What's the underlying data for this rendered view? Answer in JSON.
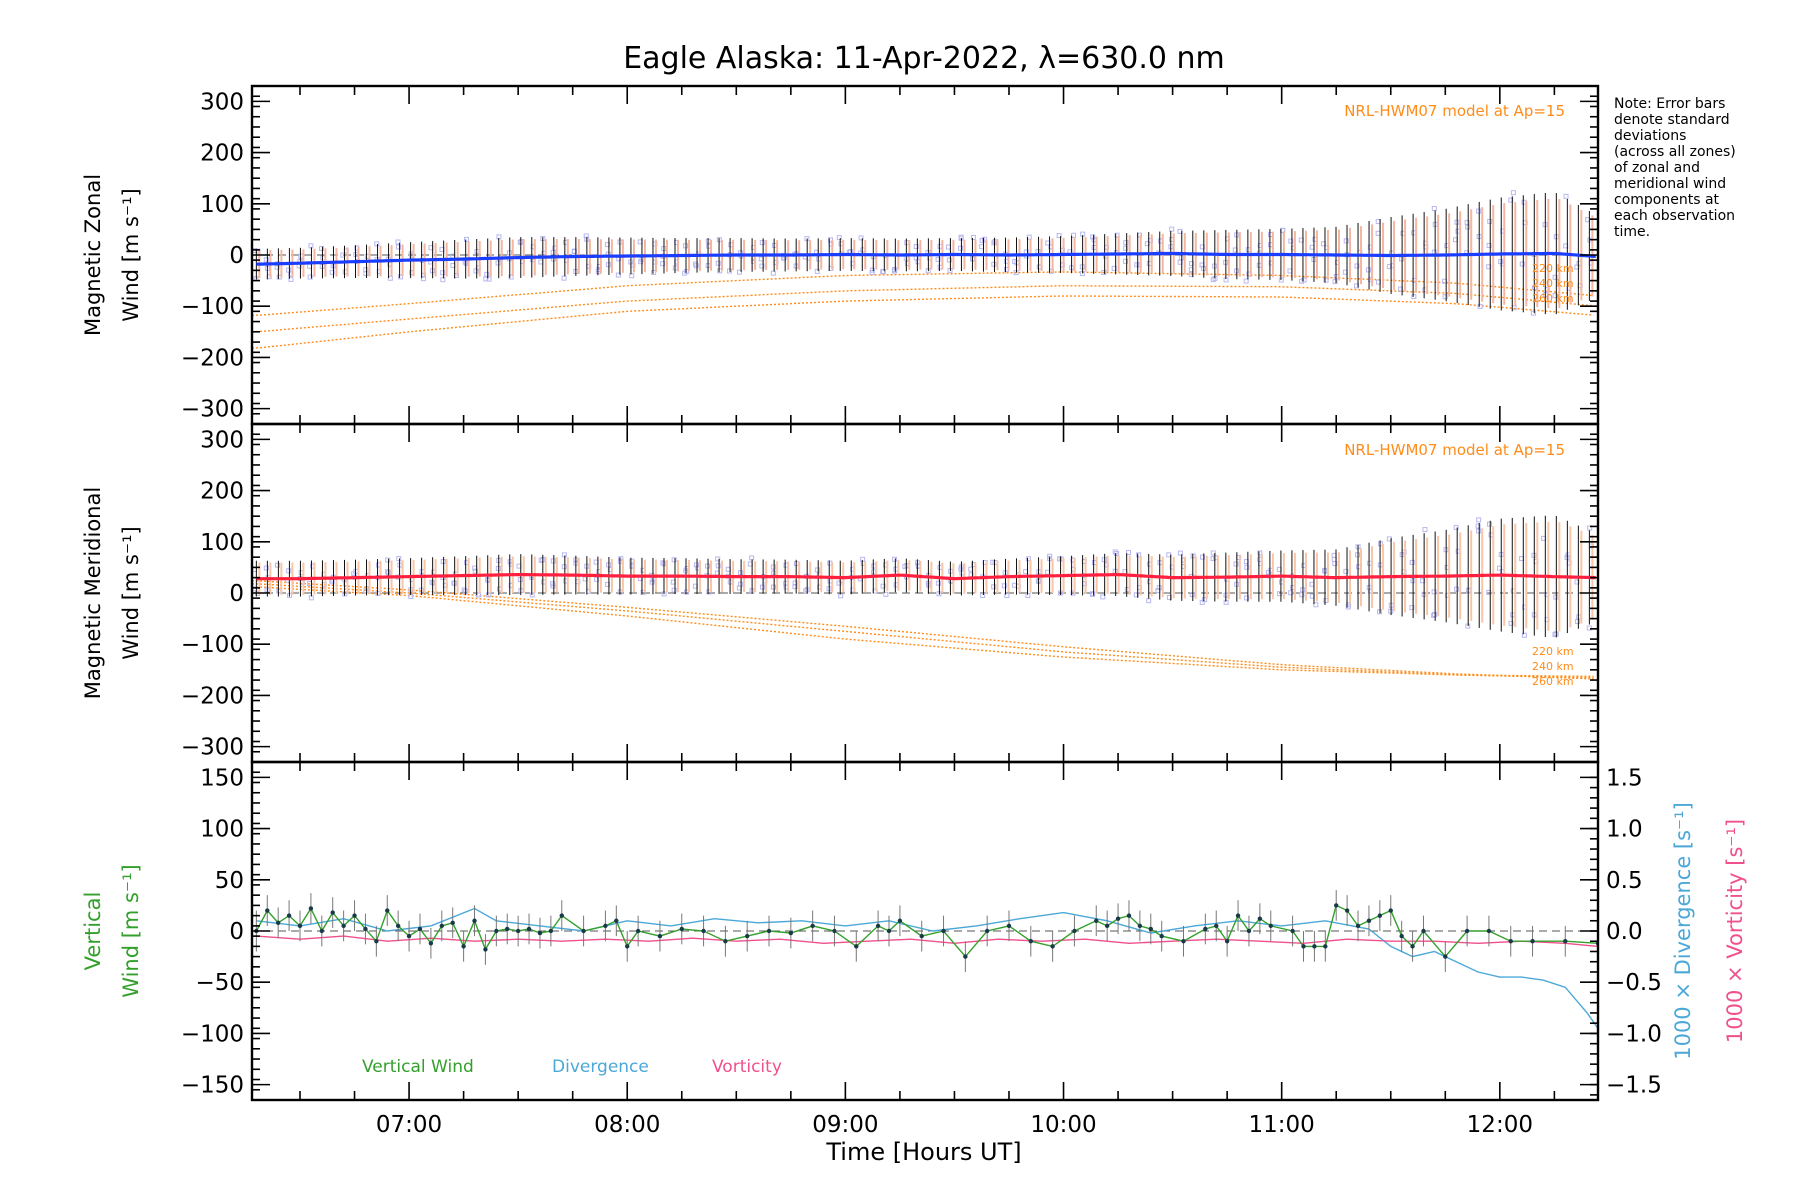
{
  "title": "Eagle Alaska: 11-Apr-2022, λ=630.0 nm",
  "note": [
    "Note: Error bars",
    "denote standard",
    "deviations",
    "(across all zones)",
    "of zonal and",
    "meridional wind",
    "components at",
    "each observation",
    "time."
  ],
  "xlabel": "Time [Hours UT]",
  "chart_data": [
    {
      "type": "line",
      "panel": "zonal",
      "ylabel_lines": [
        "Magnetic Zonal",
        "Wind [m s⁻¹]"
      ],
      "xlim": [
        6.28,
        12.45
      ],
      "ylim": [
        -330,
        330
      ],
      "x_ticks": [
        7,
        8,
        9,
        10,
        11,
        12
      ],
      "x_tick_labels": [
        "07:00",
        "08:00",
        "09:00",
        "10:00",
        "11:00",
        "12:00"
      ],
      "y_ticks": [
        -300,
        -200,
        -100,
        0,
        100,
        200,
        300
      ],
      "y_tick_labels": [
        "−300",
        "−200",
        "−100",
        "0",
        "100",
        "200",
        "300"
      ],
      "model_label": "NRL-HWM07 model at Ap=15",
      "series": [
        {
          "x": [
            6.3,
            6.5,
            6.75,
            7.0,
            7.25,
            7.5,
            7.75,
            8.0,
            8.25,
            8.5,
            8.75,
            9.0,
            9.25,
            9.5,
            9.75,
            10.0,
            10.25,
            10.5,
            10.75,
            11.0,
            11.25,
            11.5,
            11.75,
            12.0,
            12.25,
            12.45
          ],
          "y": [
            -18,
            -16,
            -13,
            -10,
            -8,
            -5,
            -3,
            -2,
            -1,
            0,
            0,
            1,
            0,
            1,
            0,
            1,
            2,
            3,
            1,
            1,
            0,
            -1,
            0,
            2,
            3,
            -3
          ],
          "err": [
            30,
            30,
            32,
            35,
            38,
            40,
            38,
            36,
            34,
            33,
            32,
            32,
            32,
            32,
            34,
            36,
            40,
            44,
            48,
            50,
            55,
            75,
            90,
            110,
            120,
            80
          ],
          "color": "#1a3dff"
        }
      ],
      "model_curves": [
        {
          "label": "220 km",
          "x": [
            6.3,
            7.0,
            8.0,
            9.0,
            10.0,
            11.0,
            11.8,
            12.45
          ],
          "y": [
            -118,
            -95,
            -60,
            -40,
            -33,
            -40,
            -55,
            -80
          ]
        },
        {
          "label": "240 km",
          "x": [
            6.3,
            7.0,
            8.0,
            9.0,
            10.0,
            11.0,
            11.8,
            12.45
          ],
          "y": [
            -150,
            -125,
            -90,
            -70,
            -60,
            -62,
            -75,
            -100
          ]
        },
        {
          "label": "260 km",
          "x": [
            6.3,
            7.0,
            8.0,
            9.0,
            10.0,
            11.0,
            11.8,
            12.45
          ],
          "y": [
            -182,
            -150,
            -110,
            -90,
            -80,
            -82,
            -95,
            -118
          ]
        }
      ]
    },
    {
      "type": "line",
      "panel": "meridional",
      "ylabel_lines": [
        "Magnetic Meridional",
        "Wind [m s⁻¹]"
      ],
      "xlim": [
        6.28,
        12.45
      ],
      "ylim": [
        -330,
        330
      ],
      "x_ticks": [
        7,
        8,
        9,
        10,
        11,
        12
      ],
      "y_ticks": [
        -300,
        -200,
        -100,
        0,
        100,
        200,
        300
      ],
      "y_tick_labels": [
        "−300",
        "−200",
        "−100",
        "0",
        "100",
        "200",
        "300"
      ],
      "model_label": "NRL-HWM07 model at Ap=15",
      "series": [
        {
          "x": [
            6.3,
            6.5,
            6.75,
            7.0,
            7.25,
            7.5,
            7.75,
            8.0,
            8.25,
            8.5,
            8.75,
            9.0,
            9.25,
            9.5,
            9.75,
            10.0,
            10.25,
            10.5,
            10.75,
            11.0,
            11.25,
            11.5,
            11.75,
            12.0,
            12.25,
            12.45
          ],
          "y": [
            28,
            28,
            30,
            32,
            34,
            36,
            35,
            33,
            33,
            32,
            32,
            30,
            35,
            28,
            32,
            34,
            36,
            30,
            31,
            33,
            30,
            32,
            33,
            35,
            32,
            30
          ],
          "err": [
            35,
            35,
            35,
            36,
            38,
            40,
            38,
            36,
            35,
            34,
            33,
            33,
            33,
            33,
            35,
            38,
            42,
            45,
            48,
            50,
            55,
            75,
            90,
            110,
            120,
            85
          ],
          "color": "#ff2040"
        }
      ],
      "model_curves": [
        {
          "label": "220 km",
          "x": [
            6.3,
            7.0,
            8.0,
            9.0,
            10.0,
            11.0,
            11.8,
            12.45
          ],
          "y": [
            12,
            -5,
            -45,
            -90,
            -125,
            -150,
            -160,
            -163
          ]
        },
        {
          "label": "240 km",
          "x": [
            6.3,
            7.0,
            8.0,
            9.0,
            10.0,
            11.0,
            11.8,
            12.45
          ],
          "y": [
            18,
            0,
            -35,
            -75,
            -115,
            -145,
            -160,
            -166
          ]
        },
        {
          "label": "260 km",
          "x": [
            6.3,
            7.0,
            8.0,
            9.0,
            10.0,
            11.0,
            11.8,
            12.45
          ],
          "y": [
            24,
            6,
            -28,
            -65,
            -105,
            -140,
            -158,
            -168
          ]
        }
      ]
    },
    {
      "type": "line",
      "panel": "vertical",
      "ylabel_lines": [
        "Vertical",
        "Wind [m s⁻¹]"
      ],
      "ylabel2": "1000 × Divergence [s⁻¹]",
      "ylabel3": "1000 × Vorticity [s⁻¹]",
      "xlim": [
        6.28,
        12.45
      ],
      "ylim": [
        -165,
        165
      ],
      "y2lim": [
        -1.65,
        1.65
      ],
      "x_ticks": [
        7,
        8,
        9,
        10,
        11,
        12
      ],
      "x_tick_labels": [
        "07:00",
        "08:00",
        "09:00",
        "10:00",
        "11:00",
        "12:00"
      ],
      "y_ticks": [
        -150,
        -100,
        -50,
        0,
        50,
        100,
        150
      ],
      "y_tick_labels": [
        "−150",
        "−100",
        "−50",
        "0",
        "50",
        "100",
        "150"
      ],
      "y2_ticks": [
        -1.5,
        -1.0,
        -0.5,
        0.0,
        0.5,
        1.0,
        1.5
      ],
      "y2_tick_labels": [
        "−1.5",
        "−1.0",
        "−0.5",
        "0.0",
        "0.5",
        "1.0",
        "1.5"
      ],
      "series": [
        {
          "name": "Vertical Wind",
          "color": "#33a02c",
          "x": [
            6.3,
            6.35,
            6.4,
            6.45,
            6.5,
            6.55,
            6.6,
            6.65,
            6.7,
            6.75,
            6.8,
            6.85,
            6.9,
            6.95,
            7.0,
            7.05,
            7.1,
            7.15,
            7.2,
            7.25,
            7.3,
            7.35,
            7.4,
            7.45,
            7.5,
            7.55,
            7.6,
            7.65,
            7.7,
            7.8,
            7.9,
            7.95,
            8.0,
            8.05,
            8.15,
            8.25,
            8.35,
            8.45,
            8.55,
            8.65,
            8.75,
            8.85,
            8.95,
            9.05,
            9.15,
            9.2,
            9.25,
            9.35,
            9.45,
            9.55,
            9.65,
            9.75,
            9.85,
            9.95,
            10.05,
            10.15,
            10.2,
            10.25,
            10.3,
            10.35,
            10.4,
            10.45,
            10.55,
            10.65,
            10.7,
            10.75,
            10.8,
            10.85,
            10.9,
            10.95,
            11.05,
            11.1,
            11.15,
            11.2,
            11.25,
            11.3,
            11.35,
            11.4,
            11.45,
            11.5,
            11.55,
            11.6,
            11.65,
            11.75,
            11.85,
            11.95,
            12.05,
            12.15,
            12.3,
            12.45
          ],
          "y": [
            0,
            20,
            8,
            15,
            5,
            22,
            0,
            18,
            5,
            15,
            2,
            -10,
            20,
            5,
            -5,
            2,
            -12,
            5,
            8,
            -15,
            10,
            -18,
            0,
            2,
            0,
            2,
            -2,
            0,
            15,
            0,
            5,
            10,
            -15,
            0,
            -5,
            2,
            0,
            -10,
            -5,
            0,
            -2,
            5,
            0,
            -15,
            5,
            0,
            10,
            -5,
            0,
            -25,
            0,
            5,
            -10,
            -15,
            0,
            10,
            5,
            12,
            15,
            5,
            2,
            -5,
            -10,
            2,
            5,
            -10,
            15,
            0,
            12,
            5,
            0,
            -15,
            -15,
            -15,
            25,
            20,
            5,
            10,
            15,
            20,
            -5,
            -15,
            0,
            -25,
            0,
            0,
            -10,
            -10,
            -10,
            -12
          ],
          "err": [
            20,
            15,
            15,
            15,
            15,
            15,
            15,
            15,
            15,
            15,
            15,
            15,
            15,
            15,
            15,
            15,
            15,
            15,
            15,
            15,
            15,
            15,
            15,
            15,
            15,
            15,
            15,
            15,
            15,
            15,
            15,
            15,
            15,
            15,
            15,
            15,
            15,
            15,
            15,
            15,
            15,
            15,
            15,
            15,
            15,
            15,
            15,
            15,
            15,
            15,
            15,
            15,
            15,
            15,
            15,
            15,
            15,
            15,
            15,
            15,
            15,
            15,
            15,
            15,
            15,
            15,
            15,
            15,
            15,
            15,
            15,
            15,
            15,
            15,
            15,
            15,
            15,
            15,
            15,
            15,
            15,
            15,
            15,
            15,
            15,
            15,
            15,
            15,
            15,
            15
          ]
        },
        {
          "name": "Divergence",
          "color": "#4ba8d8",
          "axis": "y2",
          "x": [
            6.3,
            6.5,
            6.7,
            6.9,
            7.1,
            7.3,
            7.4,
            7.6,
            7.8,
            8.0,
            8.2,
            8.4,
            8.6,
            8.8,
            9.0,
            9.2,
            9.4,
            9.6,
            9.8,
            10.0,
            10.2,
            10.4,
            10.6,
            10.8,
            11.0,
            11.2,
            11.4,
            11.5,
            11.6,
            11.7,
            11.8,
            11.9,
            12.0,
            12.1,
            12.2,
            12.3,
            12.4,
            12.45
          ],
          "y": [
            0.1,
            0.05,
            0.12,
            0.0,
            0.05,
            0.22,
            0.1,
            0.05,
            0.0,
            0.1,
            0.05,
            0.12,
            0.08,
            0.1,
            0.05,
            0.1,
            0.0,
            0.05,
            0.12,
            0.18,
            0.1,
            -0.02,
            0.05,
            0.1,
            0.05,
            0.1,
            0.02,
            -0.15,
            -0.25,
            -0.2,
            -0.3,
            -0.4,
            -0.45,
            -0.45,
            -0.48,
            -0.55,
            -0.8,
            -0.95
          ]
        },
        {
          "name": "Vorticity",
          "color": "#f0508c",
          "axis": "y2",
          "x": [
            6.3,
            6.5,
            6.7,
            6.9,
            7.1,
            7.3,
            7.5,
            7.7,
            7.9,
            8.1,
            8.3,
            8.5,
            8.7,
            8.9,
            9.1,
            9.3,
            9.5,
            9.7,
            9.9,
            10.1,
            10.3,
            10.5,
            10.7,
            10.9,
            11.1,
            11.3,
            11.5,
            11.7,
            11.9,
            12.1,
            12.3,
            12.45
          ],
          "y": [
            -0.05,
            -0.08,
            -0.05,
            -0.1,
            -0.07,
            -0.1,
            -0.08,
            -0.1,
            -0.08,
            -0.1,
            -0.07,
            -0.1,
            -0.08,
            -0.12,
            -0.1,
            -0.08,
            -0.12,
            -0.08,
            -0.1,
            -0.08,
            -0.12,
            -0.1,
            -0.08,
            -0.1,
            -0.12,
            -0.08,
            -0.1,
            -0.1,
            -0.12,
            -0.1,
            -0.12,
            -0.15
          ]
        }
      ]
    }
  ],
  "colors": {
    "model": "#ff8c1a",
    "zonal": "#1a3dff",
    "meridional": "#ff2040",
    "vertical": "#33a02c",
    "divergence": "#4ba8d8",
    "vorticity": "#f0508c",
    "scatter": "#b8b8f0"
  }
}
